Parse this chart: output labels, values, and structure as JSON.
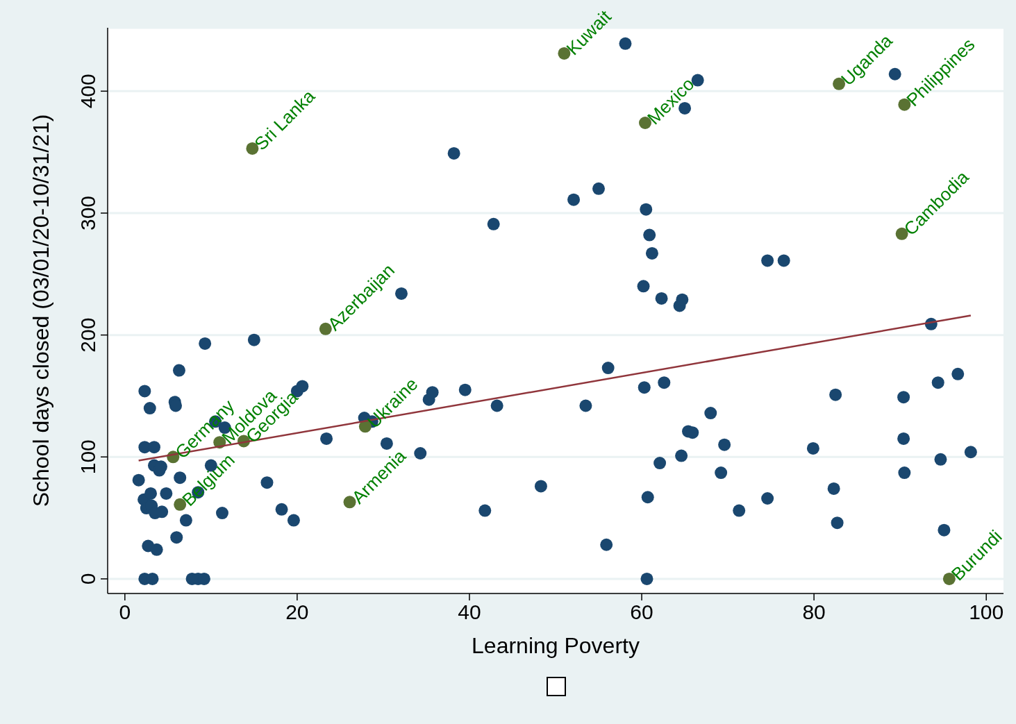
{
  "chart_data": {
    "type": "scatter",
    "xlabel": "Learning Poverty",
    "ylabel": "School days closed (03/01/20-10/31/21)",
    "xlim": [
      -2,
      102
    ],
    "ylim": [
      -12,
      452
    ],
    "xticks": [
      0,
      20,
      40,
      60,
      80,
      100
    ],
    "yticks": [
      0,
      100,
      200,
      300,
      400
    ],
    "grid": "y",
    "legend": false,
    "marker": "circle",
    "series": [
      {
        "type": "scatter",
        "color": "#1a476f",
        "x": [
          1.6,
          2.3,
          2.3,
          2.2,
          2.5,
          2.9,
          3.0,
          3.1,
          3.4,
          3.4,
          3.5,
          4.0,
          4.2,
          4.3,
          2.7,
          3.7,
          2.3,
          3.2,
          4.8,
          5.8,
          5.9,
          6.0,
          6.4,
          6.3,
          7.1,
          7.8,
          8.5,
          9.2,
          8.5,
          9.3,
          10.0,
          10.5,
          11.6,
          11.3,
          15.0,
          16.5,
          18.2,
          19.6,
          20.0,
          20.6,
          23.4,
          27.8,
          28.7,
          30.4,
          32.1,
          34.3,
          35.3,
          35.7,
          38.2,
          39.5,
          41.8,
          42.8,
          43.2,
          48.3,
          52.1,
          53.5,
          55.0,
          55.9,
          56.1,
          58.1,
          60.2,
          60.3,
          60.5,
          60.7,
          60.9,
          60.6,
          61.2,
          62.1,
          62.3,
          62.6,
          64.4,
          64.6,
          64.7,
          65.0,
          65.4,
          65.9,
          66.5,
          68.0,
          69.2,
          69.6,
          71.3,
          74.6,
          74.6,
          76.5,
          79.9,
          82.3,
          82.5,
          82.7,
          89.4,
          90.4,
          90.4,
          90.5,
          93.6,
          94.4,
          94.7,
          95.1,
          96.7,
          98.2
        ],
        "values": [
          81,
          154,
          108,
          65,
          58,
          140,
          70,
          60,
          108,
          93,
          54,
          89,
          92,
          55,
          27,
          24,
          0,
          0,
          70,
          145,
          142,
          34,
          83,
          171,
          48,
          0,
          0,
          0,
          71,
          193,
          93,
          129,
          124,
          54,
          196,
          79,
          57,
          48,
          154,
          158,
          115,
          132,
          129,
          111,
          234,
          103,
          147,
          153,
          349,
          155,
          56,
          291,
          142,
          76,
          311,
          142,
          320,
          28,
          173,
          439,
          240,
          157,
          303,
          67,
          282,
          0,
          267,
          95,
          230,
          161,
          224,
          101,
          229,
          386,
          121,
          120,
          409,
          136,
          87,
          110,
          56,
          261,
          66,
          261,
          107,
          74,
          151,
          46,
          414,
          149,
          115,
          87,
          209,
          161,
          98,
          40,
          168,
          104
        ]
      },
      {
        "type": "scatter",
        "color": "#5a7233",
        "x": [
          51.0,
          14.8,
          60.4,
          82.9,
          90.5,
          90.2,
          23.3,
          5.6,
          6.4,
          11.0,
          13.8,
          27.9,
          26.1,
          95.7
        ],
        "values": [
          431,
          353,
          374,
          406,
          389,
          283,
          205,
          100,
          61,
          112,
          113,
          125,
          63,
          0
        ]
      },
      {
        "type": "line",
        "color": "#90353b",
        "marker": "none",
        "x": [
          1.6,
          98.2
        ],
        "values": [
          97,
          216
        ]
      }
    ],
    "annotations": [
      {
        "text": "Kuwait",
        "x": 51.0,
        "y": 431
      },
      {
        "text": "Sri Lanka",
        "x": 14.8,
        "y": 353
      },
      {
        "text": "Mexico",
        "x": 60.4,
        "y": 374
      },
      {
        "text": "Uganda",
        "x": 82.9,
        "y": 406
      },
      {
        "text": "Philippines",
        "x": 90.5,
        "y": 389
      },
      {
        "text": "Cambodia",
        "x": 90.2,
        "y": 283
      },
      {
        "text": "Azerbaijan",
        "x": 23.3,
        "y": 205
      },
      {
        "text": "Germany",
        "x": 5.6,
        "y": 100
      },
      {
        "text": "Belgium",
        "x": 6.4,
        "y": 61
      },
      {
        "text": "Moldova",
        "x": 11.0,
        "y": 112
      },
      {
        "text": "Georgia",
        "x": 13.8,
        "y": 113
      },
      {
        "text": "Ukraine",
        "x": 27.9,
        "y": 125
      },
      {
        "text": "Armenia",
        "x": 26.1,
        "y": 63
      },
      {
        "text": "Burundi",
        "x": 95.7,
        "y": 0
      }
    ]
  }
}
